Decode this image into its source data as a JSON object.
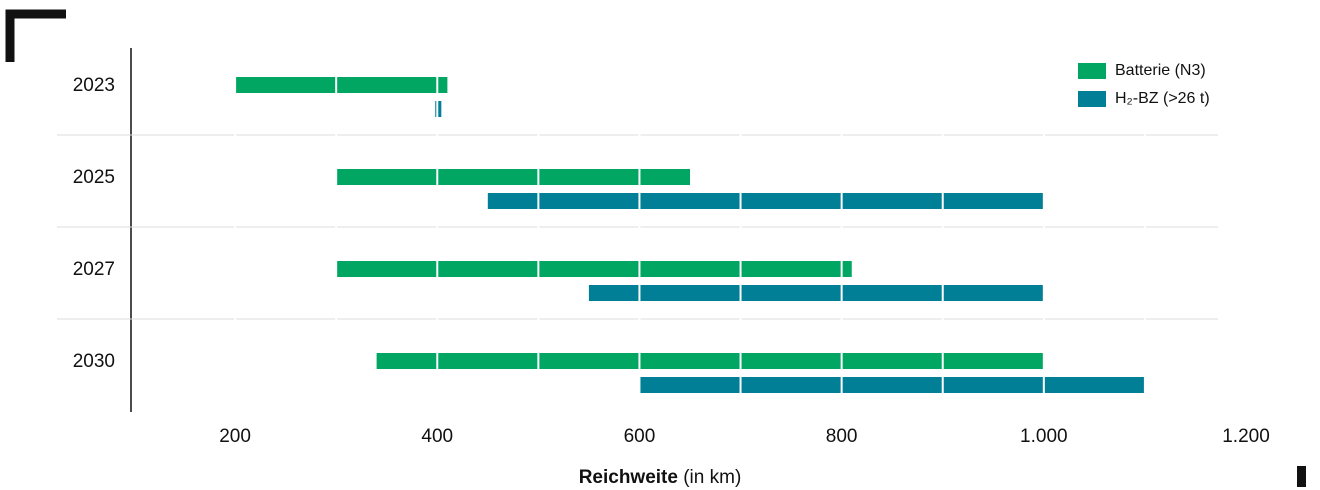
{
  "chart_data": {
    "type": "rangebar",
    "categories": [
      "2023",
      "2025",
      "2027",
      "2030"
    ],
    "series": [
      {
        "name": "Batterie (N3)",
        "color": "#00a661",
        "values": [
          [
            200,
            410
          ],
          [
            300,
            650
          ],
          [
            300,
            810
          ],
          [
            340,
            1000
          ]
        ]
      },
      {
        "name": "H₂-BZ (>26 t)",
        "color": "#007f96",
        "values": [
          [
            398,
            404
          ],
          [
            450,
            1000
          ],
          [
            550,
            1000
          ],
          [
            600,
            1100
          ]
        ]
      }
    ],
    "xlim": [
      100,
      1200
    ],
    "xticks": [
      200,
      400,
      600,
      800,
      {
        "value": 1000,
        "label": "1.000"
      },
      {
        "value": 1200,
        "label": "1.200"
      }
    ],
    "xgridlines": [
      200,
      300,
      400,
      500,
      600,
      700,
      800,
      900,
      1000,
      1100
    ],
    "xlabel": "Reichweite",
    "xlabel_unit": "(in km)",
    "legend": "top-right"
  }
}
